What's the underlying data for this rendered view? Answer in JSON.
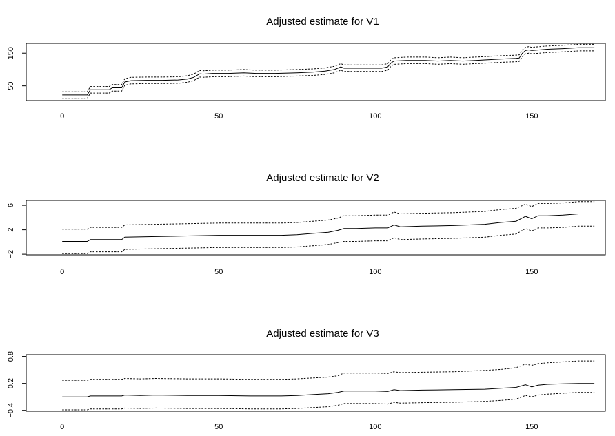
{
  "chart_data": [
    {
      "type": "line",
      "title": "Adjusted estimate for V1",
      "xlabel": "",
      "ylabel": "",
      "xlim": [
        0,
        170
      ],
      "ylim": [
        5,
        180
      ],
      "xticks": [
        0,
        50,
        100,
        150
      ],
      "yticks": [
        50,
        150
      ],
      "grid": false,
      "series": [
        {
          "role": "estimate",
          "style": "solid",
          "x": [
            0,
            8,
            9,
            15,
            16,
            19,
            20,
            22,
            27,
            32,
            37,
            40,
            42,
            43,
            44,
            45,
            48,
            53,
            58,
            62,
            68,
            75,
            80,
            84,
            87,
            88,
            89,
            90,
            94,
            98,
            102,
            104,
            105,
            106,
            110,
            116,
            120,
            124,
            128,
            132,
            136,
            140,
            145,
            146,
            147,
            148,
            149,
            150,
            155,
            160,
            165,
            170
          ],
          "y": [
            22,
            22,
            38,
            38,
            44,
            44,
            62,
            66,
            67,
            67,
            68,
            71,
            76,
            82,
            87,
            86,
            88,
            88,
            90,
            88,
            88,
            90,
            92,
            95,
            100,
            104,
            108,
            104,
            104,
            104,
            104,
            108,
            120,
            126,
            128,
            128,
            126,
            128,
            126,
            128,
            130,
            132,
            134,
            135,
            150,
            158,
            160,
            158,
            162,
            164,
            167,
            167
          ]
        },
        {
          "role": "upper-bound",
          "style": "dashed",
          "x": [
            0,
            8,
            9,
            15,
            16,
            19,
            20,
            22,
            27,
            32,
            37,
            40,
            42,
            43,
            44,
            45,
            48,
            53,
            58,
            62,
            68,
            75,
            80,
            84,
            87,
            88,
            89,
            90,
            94,
            98,
            102,
            104,
            105,
            106,
            110,
            116,
            120,
            124,
            128,
            132,
            136,
            140,
            145,
            146,
            147,
            148,
            149,
            150,
            155,
            160,
            165,
            170
          ],
          "y": [
            32,
            32,
            48,
            48,
            54,
            54,
            72,
            76,
            77,
            77,
            78,
            81,
            86,
            92,
            97,
            96,
            98,
            98,
            100,
            98,
            98,
            100,
            102,
            105,
            110,
            114,
            118,
            114,
            114,
            114,
            114,
            118,
            130,
            136,
            138,
            138,
            136,
            138,
            136,
            138,
            140,
            142,
            144,
            145,
            160,
            168,
            170,
            168,
            172,
            174,
            177,
            177
          ]
        },
        {
          "role": "lower-bound",
          "style": "dashed",
          "x": [
            0,
            8,
            9,
            15,
            16,
            19,
            20,
            22,
            27,
            32,
            37,
            40,
            42,
            43,
            44,
            45,
            48,
            53,
            58,
            62,
            68,
            75,
            80,
            84,
            87,
            88,
            89,
            90,
            94,
            98,
            102,
            104,
            105,
            106,
            110,
            116,
            120,
            124,
            128,
            132,
            136,
            140,
            145,
            146,
            147,
            148,
            149,
            150,
            155,
            160,
            165,
            170
          ],
          "y": [
            12,
            12,
            28,
            28,
            34,
            34,
            52,
            56,
            57,
            57,
            58,
            61,
            66,
            72,
            77,
            76,
            78,
            78,
            80,
            78,
            78,
            80,
            82,
            85,
            90,
            94,
            98,
            94,
            94,
            94,
            94,
            98,
            110,
            116,
            118,
            118,
            116,
            118,
            116,
            118,
            120,
            122,
            124,
            125,
            140,
            148,
            150,
            148,
            152,
            154,
            157,
            157
          ]
        }
      ]
    },
    {
      "type": "line",
      "title": "Adjusted estimate for V2",
      "xlabel": "",
      "ylabel": "",
      "xlim": [
        0,
        170
      ],
      "ylim": [
        -2.1,
        6.8
      ],
      "xticks": [
        0,
        50,
        100,
        150
      ],
      "yticks": [
        -2,
        2,
        6
      ],
      "grid": false,
      "series": [
        {
          "role": "estimate",
          "style": "solid",
          "x": [
            0,
            8,
            9,
            15,
            19,
            20,
            30,
            40,
            50,
            60,
            70,
            75,
            80,
            85,
            88,
            90,
            94,
            100,
            104,
            106,
            108,
            115,
            125,
            135,
            140,
            145,
            148,
            150,
            152,
            155,
            160,
            165,
            170
          ],
          "y": [
            0.1,
            0.1,
            0.4,
            0.4,
            0.4,
            0.8,
            0.9,
            1.0,
            1.1,
            1.1,
            1.1,
            1.2,
            1.4,
            1.6,
            1.9,
            2.2,
            2.2,
            2.3,
            2.3,
            2.8,
            2.5,
            2.6,
            2.7,
            2.9,
            3.2,
            3.4,
            4.2,
            3.8,
            4.3,
            4.3,
            4.4,
            4.6,
            4.6
          ]
        },
        {
          "role": "upper-bound",
          "style": "dashed",
          "x": [
            0,
            8,
            9,
            15,
            19,
            20,
            30,
            40,
            50,
            60,
            70,
            75,
            80,
            85,
            88,
            90,
            94,
            100,
            104,
            106,
            108,
            115,
            125,
            135,
            140,
            145,
            148,
            150,
            152,
            155,
            160,
            165,
            170
          ],
          "y": [
            2.1,
            2.1,
            2.4,
            2.4,
            2.4,
            2.8,
            2.9,
            3.0,
            3.1,
            3.1,
            3.1,
            3.2,
            3.4,
            3.6,
            3.9,
            4.3,
            4.3,
            4.4,
            4.4,
            4.9,
            4.6,
            4.7,
            4.8,
            5.0,
            5.3,
            5.5,
            6.2,
            5.8,
            6.3,
            6.3,
            6.4,
            6.6,
            6.6
          ]
        },
        {
          "role": "lower-bound",
          "style": "dashed",
          "x": [
            0,
            8,
            9,
            15,
            19,
            20,
            30,
            40,
            50,
            60,
            70,
            75,
            80,
            85,
            88,
            90,
            94,
            100,
            104,
            106,
            108,
            115,
            125,
            135,
            140,
            145,
            148,
            150,
            152,
            155,
            160,
            165,
            170
          ],
          "y": [
            -1.9,
            -1.9,
            -1.6,
            -1.6,
            -1.6,
            -1.2,
            -1.1,
            -1.0,
            -0.9,
            -0.9,
            -0.9,
            -0.8,
            -0.6,
            -0.4,
            -0.1,
            0.1,
            0.1,
            0.2,
            0.2,
            0.7,
            0.4,
            0.5,
            0.6,
            0.8,
            1.1,
            1.3,
            2.2,
            1.8,
            2.3,
            2.3,
            2.4,
            2.6,
            2.6
          ]
        }
      ]
    },
    {
      "type": "line",
      "title": "Adjusted estimate for V3",
      "xlabel": "",
      "ylabel": "",
      "xlim": [
        0,
        170
      ],
      "ylim": [
        -0.42,
        0.84
      ],
      "xticks": [
        0,
        50,
        100,
        150
      ],
      "yticks": [
        -0.4,
        0.2,
        0.8
      ],
      "grid": false,
      "series": [
        {
          "role": "estimate",
          "style": "solid",
          "x": [
            0,
            8,
            9,
            15,
            19,
            20,
            25,
            30,
            40,
            50,
            60,
            70,
            75,
            80,
            85,
            88,
            90,
            95,
            100,
            104,
            106,
            108,
            115,
            125,
            135,
            140,
            145,
            148,
            150,
            152,
            155,
            160,
            165,
            170
          ],
          "y": [
            -0.1,
            -0.1,
            -0.08,
            -0.08,
            -0.08,
            -0.06,
            -0.07,
            -0.06,
            -0.07,
            -0.07,
            -0.08,
            -0.08,
            -0.07,
            -0.05,
            -0.03,
            0.0,
            0.03,
            0.03,
            0.03,
            0.02,
            0.06,
            0.04,
            0.05,
            0.06,
            0.07,
            0.09,
            0.11,
            0.17,
            0.12,
            0.16,
            0.18,
            0.19,
            0.2,
            0.2
          ]
        },
        {
          "role": "upper-bound",
          "style": "dashed",
          "x": [
            0,
            8,
            9,
            15,
            19,
            20,
            25,
            30,
            40,
            50,
            60,
            70,
            75,
            80,
            85,
            88,
            90,
            95,
            100,
            104,
            106,
            108,
            115,
            125,
            135,
            140,
            145,
            148,
            150,
            152,
            155,
            160,
            165,
            170
          ],
          "y": [
            0.27,
            0.27,
            0.29,
            0.29,
            0.29,
            0.31,
            0.3,
            0.31,
            0.3,
            0.3,
            0.29,
            0.29,
            0.3,
            0.32,
            0.34,
            0.37,
            0.43,
            0.43,
            0.43,
            0.42,
            0.46,
            0.44,
            0.45,
            0.46,
            0.49,
            0.51,
            0.55,
            0.63,
            0.6,
            0.64,
            0.66,
            0.68,
            0.7,
            0.7
          ]
        },
        {
          "role": "lower-bound",
          "style": "dashed",
          "x": [
            0,
            8,
            9,
            15,
            19,
            20,
            25,
            30,
            40,
            50,
            60,
            70,
            75,
            80,
            85,
            88,
            90,
            95,
            100,
            104,
            106,
            108,
            115,
            125,
            135,
            140,
            145,
            148,
            150,
            152,
            155,
            160,
            165,
            170
          ],
          "y": [
            -0.39,
            -0.39,
            -0.37,
            -0.37,
            -0.37,
            -0.35,
            -0.36,
            -0.35,
            -0.36,
            -0.36,
            -0.37,
            -0.37,
            -0.36,
            -0.34,
            -0.32,
            -0.29,
            -0.25,
            -0.25,
            -0.25,
            -0.26,
            -0.22,
            -0.24,
            -0.23,
            -0.22,
            -0.2,
            -0.18,
            -0.15,
            -0.07,
            -0.1,
            -0.06,
            -0.04,
            -0.02,
            0.0,
            0.0
          ]
        }
      ]
    }
  ]
}
